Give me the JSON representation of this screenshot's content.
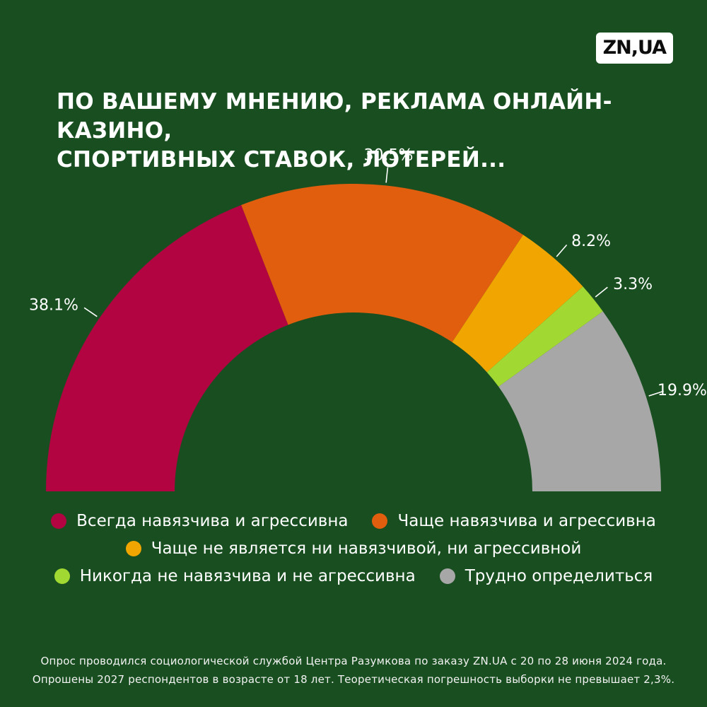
{
  "header": {
    "logo": "ZN,UA",
    "title_lines": [
      "ПО ВАШЕМУ МНЕНИЮ, РЕКЛАМА ОНЛАЙН-КАЗИНО,",
      "СПОРТИВНЫХ СТАВОК, ЛОТЕРЕЙ..."
    ]
  },
  "chart_data": {
    "type": "pie",
    "variant": "half-donut",
    "title": "ПО ВАШЕМУ МНЕНИЮ, РЕКЛАМА ОНЛАЙН-КАЗИНО, СПОРТИВНЫХ СТАВОК, ЛОТЕРЕЙ...",
    "unit": "percent",
    "total": 100,
    "start_angle_deg": 180,
    "end_angle_deg": 360,
    "legend_position": "bottom",
    "segments": [
      {
        "label": "Всегда навязчива и агрессивна",
        "value": 38.1,
        "value_label": "38.1%",
        "color": "#b10441"
      },
      {
        "label": "Чаще навязчива и агрессивна",
        "value": 30.5,
        "value_label": "30.5%",
        "color": "#e05e0d"
      },
      {
        "label": "Чаще не является ни навязчивой, ни агрессивной",
        "value": 8.2,
        "value_label": "8.2%",
        "color": "#f0a500"
      },
      {
        "label": "Никогда не навязчива и не агрессивна",
        "value": 3.3,
        "value_label": "3.3%",
        "color": "#a2d832"
      },
      {
        "label": "Трудно определиться",
        "value": 19.9,
        "value_label": "19.9%",
        "color": "#a7a7a7"
      }
    ],
    "legend_rows": [
      [
        0,
        1
      ],
      [
        2
      ],
      [
        3,
        4
      ]
    ]
  },
  "footnote": {
    "lines": [
      "Опрос проводился социологической службой Центра Разумкова по заказу ZN.UA с 20 по 28 июня 2024 года.",
      "Опрошены 2027 респондентов в возрасте от 18 лет. Теоретическая погрешность выборки не превышает 2,3%."
    ]
  },
  "colors": {
    "background": "#194f20",
    "text": "#ffffff",
    "leader_line": "#ffffff"
  }
}
